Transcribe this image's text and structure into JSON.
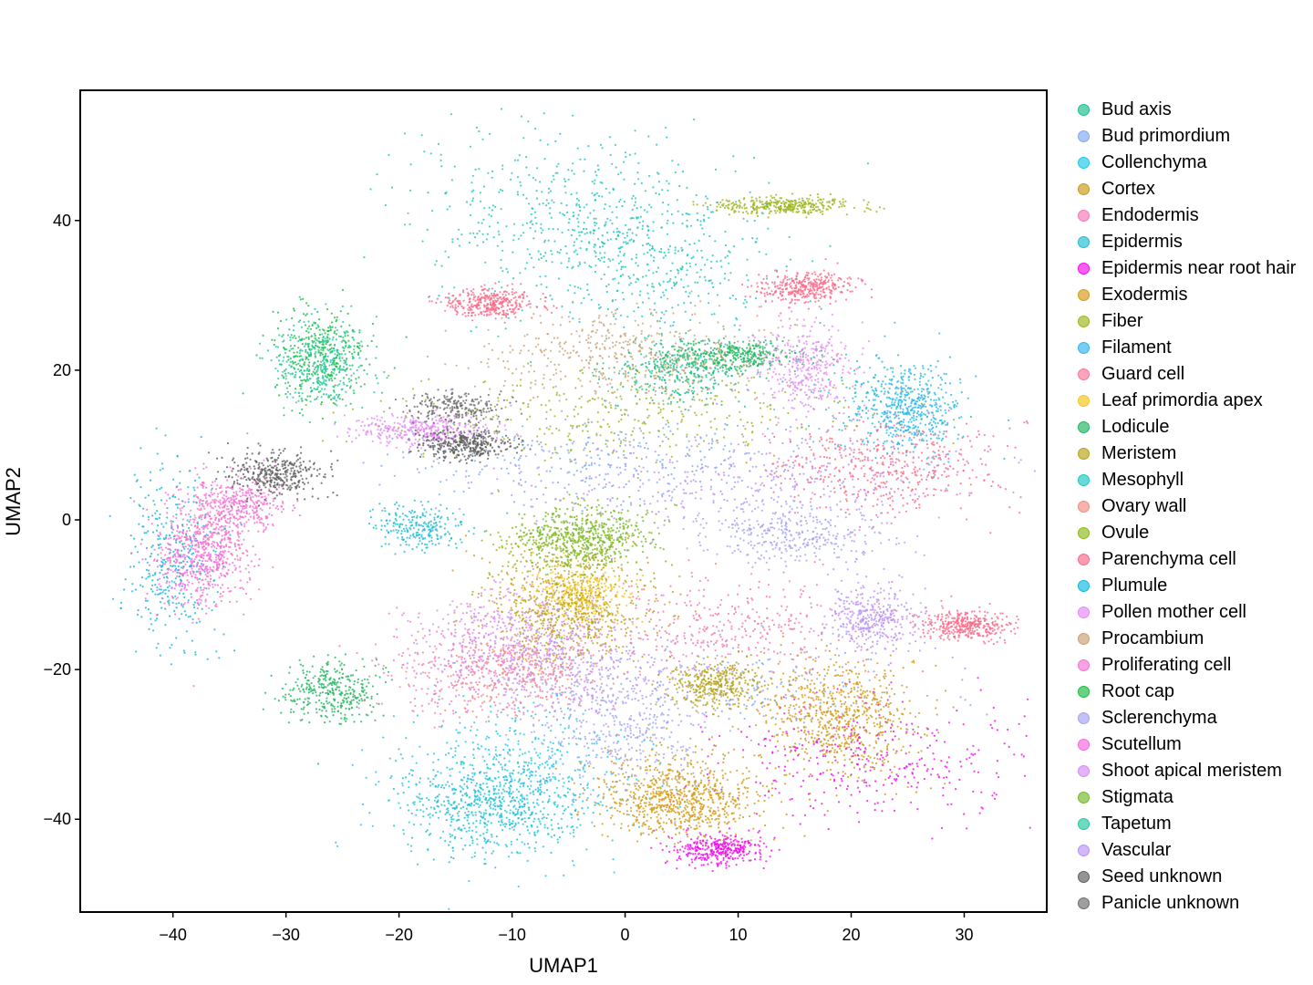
{
  "chart_data": {
    "type": "scatter",
    "xlabel": "UMAP1",
    "ylabel": "UMAP2",
    "xlim": [
      -48.2,
      37.3
    ],
    "ylim": [
      -52.4,
      57.4
    ],
    "x_ticks": [
      -40,
      -30,
      -20,
      -10,
      0,
      10,
      20,
      30
    ],
    "y_ticks": [
      -40,
      -20,
      0,
      20,
      40
    ],
    "x_tick_labels": [
      "−40",
      "−30",
      "−20",
      "−10",
      "0",
      "10",
      "20",
      "30"
    ],
    "y_tick_labels": [
      "−40",
      "−20",
      "0",
      "20",
      "40"
    ],
    "grid": false,
    "legend_position": "right",
    "series": [
      {
        "name": "Bud axis",
        "color": "#19bf8e",
        "clusters": [
          [
            5,
            20,
            3,
            2,
            0.3
          ]
        ]
      },
      {
        "name": "Bud primordium",
        "color": "#80a8f2",
        "clusters": [
          [
            -2,
            8,
            10,
            3,
            0.3
          ],
          [
            10,
            -22,
            8,
            3,
            0.2
          ]
        ]
      },
      {
        "name": "Collenchyma",
        "color": "#21c8e8",
        "clusters": [
          [
            -10,
            -35,
            5,
            5,
            0.5
          ]
        ]
      },
      {
        "name": "Cortex",
        "color": "#c99b1a",
        "clusters": [
          [
            5,
            -36,
            4,
            3,
            0.4
          ],
          [
            20,
            -28,
            3,
            4,
            0.3
          ],
          [
            -5,
            -10,
            4,
            4,
            0.3
          ]
        ]
      },
      {
        "name": "Endodermis",
        "color": "#f57ab8",
        "clusters": [
          [
            -37,
            -3,
            2,
            4,
            0.3
          ],
          [
            -12,
            -20,
            5,
            3,
            0.3
          ]
        ]
      },
      {
        "name": "Epidermis",
        "color": "#1fbdd4",
        "clusters": [
          [
            -12,
            -38,
            4,
            3,
            0.4
          ],
          [
            24,
            15,
            3,
            3,
            0.2
          ],
          [
            -18,
            -1,
            2,
            1.5,
            0.2
          ]
        ]
      },
      {
        "name": "Epidermis near root hair",
        "color": "#f20cea",
        "clusters": [
          [
            22,
            -32,
            7,
            4,
            0.3
          ],
          [
            8,
            -44,
            2,
            1,
            0.3
          ]
        ]
      },
      {
        "name": "Exodermis",
        "color": "#d99a14",
        "clusters": [
          [
            5,
            -38,
            3,
            2,
            0.3
          ],
          [
            18,
            -25,
            3,
            3,
            0.3
          ]
        ]
      },
      {
        "name": "Fiber",
        "color": "#9eb51e",
        "clusters": [
          [
            14,
            42,
            3,
            0.6,
            0.3
          ],
          [
            0,
            14,
            10,
            3,
            0.3
          ]
        ]
      },
      {
        "name": "Filament",
        "color": "#31b6f0",
        "clusters": [
          [
            25,
            15,
            2,
            3,
            0.3
          ]
        ]
      },
      {
        "name": "Guard cell",
        "color": "#f7789e",
        "clusters": [
          [
            10,
            -14,
            6,
            3,
            0.3
          ]
        ]
      },
      {
        "name": "Leaf primordia apex",
        "color": "#f5c61c",
        "clusters": [
          [
            -4,
            -10,
            2,
            2,
            0.3
          ]
        ]
      },
      {
        "name": "Lodicule",
        "color": "#22b65e",
        "clusters": [
          [
            10,
            22,
            3,
            1,
            0.3
          ],
          [
            -26,
            -23,
            2,
            2,
            0.3
          ]
        ]
      },
      {
        "name": "Meristem",
        "color": "#b8a314",
        "clusters": [
          [
            -5,
            -13,
            3,
            3,
            0.3
          ],
          [
            8,
            -22,
            2,
            1.5,
            0.3
          ]
        ]
      },
      {
        "name": "Mesophyll",
        "color": "#1ec7c0",
        "clusters": [
          [
            -5,
            40,
            7,
            6,
            0.4
          ],
          [
            3,
            35,
            5,
            5,
            0.3
          ]
        ]
      },
      {
        "name": "Ovary wall",
        "color": "#f58b82",
        "clusters": [
          [
            -10,
            -20,
            4,
            3,
            0.3
          ]
        ]
      },
      {
        "name": "Ovule",
        "color": "#8abb1a",
        "clusters": [
          [
            -5,
            -3,
            3,
            2,
            0.3
          ]
        ]
      },
      {
        "name": "Parenchyma cell",
        "color": "#fa6a8a",
        "clusters": [
          [
            23,
            7,
            5,
            3,
            0.4
          ],
          [
            -12,
            29,
            2,
            1,
            0.3
          ],
          [
            16,
            31,
            2,
            1,
            0.3
          ],
          [
            30,
            -14,
            2,
            1,
            0.3
          ]
        ]
      },
      {
        "name": "Plumule",
        "color": "#12b8e0",
        "clusters": [
          [
            -40,
            -5,
            2,
            6,
            0.3
          ]
        ]
      },
      {
        "name": "Pollen mother cell",
        "color": "#e58af5",
        "clusters": [
          [
            16,
            20,
            2,
            3,
            0.3
          ],
          [
            -18,
            12,
            3,
            1,
            0.3
          ]
        ]
      },
      {
        "name": "Procambium",
        "color": "#c9a276",
        "clusters": [
          [
            0,
            22,
            6,
            3,
            0.4
          ]
        ]
      },
      {
        "name": "Proliferating cell",
        "color": "#f572d5",
        "clusters": [
          [
            -34,
            2,
            2,
            2,
            0.3
          ]
        ]
      },
      {
        "name": "Root cap",
        "color": "#1fba44",
        "clusters": [
          [
            -27,
            22,
            2,
            3,
            0.3
          ]
        ]
      },
      {
        "name": "Sclerenchyma",
        "color": "#a5a4f2",
        "clusters": [
          [
            0,
            -28,
            4,
            4,
            0.3
          ],
          [
            15,
            -2,
            4,
            2,
            0.3
          ]
        ]
      },
      {
        "name": "Scutellum",
        "color": "#f56ae0",
        "clusters": [
          [
            -38,
            -5,
            2,
            3,
            0.3
          ]
        ]
      },
      {
        "name": "Shoot apical meristem",
        "color": "#d68cf5",
        "clusters": [
          [
            -10,
            -15,
            4,
            3,
            0.3
          ]
        ]
      },
      {
        "name": "Stigmata",
        "color": "#76b82e",
        "clusters": [
          [
            -3,
            -2,
            3,
            2,
            0.3
          ]
        ]
      },
      {
        "name": "Tapetum",
        "color": "#24c9a0",
        "clusters": [
          [
            -27,
            21,
            2,
            3,
            0.3
          ]
        ]
      },
      {
        "name": "Vascular",
        "color": "#b994f7",
        "clusters": [
          [
            10,
            5,
            10,
            3,
            0.3
          ],
          [
            -5,
            -20,
            6,
            3,
            0.3
          ],
          [
            22,
            -13,
            2,
            2,
            0.3
          ]
        ]
      },
      {
        "name": "Seed unknown",
        "color": "#5e5e5e",
        "clusters": [
          [
            -31,
            6,
            2,
            1.5,
            0.3
          ],
          [
            -14,
            10,
            2,
            1,
            0.3
          ]
        ]
      },
      {
        "name": "Panicle unknown",
        "color": "#6e6e6e",
        "clusters": [
          [
            -15,
            15,
            2,
            1,
            0.2
          ]
        ]
      }
    ]
  }
}
